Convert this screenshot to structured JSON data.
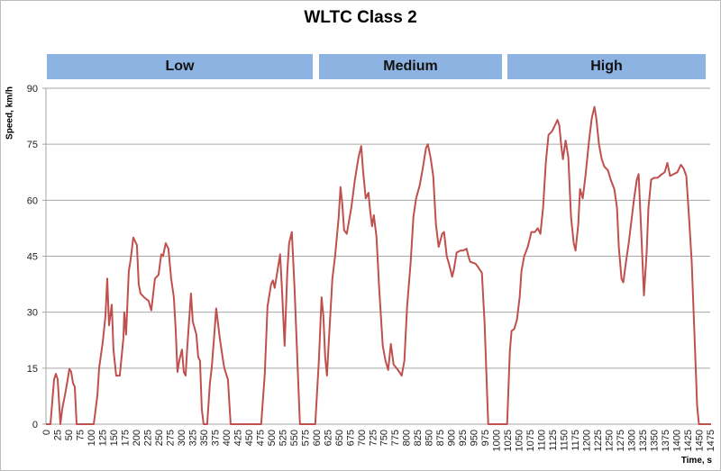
{
  "chart_data": {
    "type": "line",
    "title": "WLTC Class 2",
    "xlabel": "Time, s",
    "ylabel": "Speed, km/h",
    "xlim": [
      0,
      1475
    ],
    "ylim": [
      0,
      90
    ],
    "xticks": [
      0,
      25,
      50,
      75,
      100,
      125,
      150,
      175,
      200,
      225,
      250,
      275,
      300,
      325,
      350,
      375,
      400,
      425,
      450,
      475,
      500,
      525,
      550,
      575,
      600,
      625,
      650,
      675,
      700,
      725,
      750,
      775,
      800,
      825,
      850,
      875,
      900,
      925,
      950,
      975,
      1000,
      1025,
      1050,
      1075,
      1100,
      1125,
      1150,
      1175,
      1200,
      1225,
      1250,
      1275,
      1300,
      1325,
      1350,
      1375,
      1400,
      1425,
      1450,
      1475
    ],
    "yticks": [
      0,
      15,
      30,
      45,
      60,
      75,
      90
    ],
    "grid": "horizontal",
    "line_color": "#c0504d",
    "phase_color": "#8db3e2",
    "phases": [
      {
        "label": "Low",
        "start": 0,
        "end": 589
      },
      {
        "label": "Medium",
        "start": 589,
        "end": 1022
      },
      {
        "label": "High",
        "start": 1022,
        "end": 1477
      }
    ],
    "series": [
      {
        "x": [
          0,
          10,
          18,
          22,
          26,
          32,
          36,
          44,
          52,
          56,
          60,
          64,
          68,
          106,
          114,
          118,
          126,
          132,
          136,
          140,
          146,
          150,
          156,
          164,
          172,
          174,
          178,
          184,
          188,
          194,
          198,
          202,
          206,
          210,
          218,
          228,
          234,
          242,
          250,
          256,
          260,
          266,
          272,
          278,
          284,
          288,
          292,
          296,
          302,
          306,
          310,
          314,
          322,
          326,
          334,
          338,
          342,
          346,
          350,
          358,
          364,
          368,
          374,
          378,
          382,
          386,
          392,
          396,
          404,
          410,
          478,
          486,
          492,
          500,
          504,
          508,
          514,
          520,
          524,
          530,
          536,
          540,
          546,
          552,
          560,
          564,
          598,
          606,
          612,
          616,
          620,
          624,
          628,
          636,
          642,
          650,
          654,
          658,
          662,
          668,
          678,
          686,
          694,
          700,
          704,
          710,
          716,
          720,
          724,
          728,
          734,
          740,
          748,
          754,
          760,
          766,
          772,
          782,
          790,
          796,
          802,
          810,
          816,
          822,
          830,
          836,
          844,
          848,
          854,
          860,
          866,
          872,
          880,
          884,
          890,
          896,
          902,
          906,
          912,
          920,
          926,
          934,
          938,
          942,
          954,
          960,
          968,
          974,
          982,
          1024,
          1030,
          1034,
          1040,
          1046,
          1052,
          1056,
          1062,
          1070,
          1078,
          1086,
          1092,
          1098,
          1104,
          1110,
          1116,
          1124,
          1130,
          1136,
          1140,
          1144,
          1148,
          1154,
          1160,
          1166,
          1172,
          1176,
          1182,
          1186,
          1192,
          1198,
          1206,
          1212,
          1218,
          1222,
          1228,
          1234,
          1240,
          1248,
          1254,
          1262,
          1268,
          1272,
          1278,
          1282,
          1288,
          1294,
          1300,
          1306,
          1312,
          1316,
          1322,
          1328,
          1334,
          1338,
          1344,
          1350,
          1358,
          1368,
          1374,
          1380,
          1386,
          1394,
          1402,
          1410,
          1416,
          1422,
          1428,
          1434,
          1440,
          1446,
          1450,
          1477
        ],
        "y": [
          0,
          0,
          12,
          13.5,
          12,
          0,
          4,
          9,
          14.8,
          14,
          11,
          10,
          0,
          0,
          7.5,
          15,
          22,
          29,
          39,
          26.5,
          32,
          20,
          13,
          13,
          23,
          30,
          24,
          41,
          44,
          50,
          49,
          48,
          37.5,
          35,
          34,
          33,
          30.5,
          39,
          40,
          45.5,
          45,
          48.5,
          47,
          39,
          34,
          25.5,
          14,
          17,
          20,
          14,
          13,
          21,
          35,
          27.5,
          24,
          18,
          17,
          4,
          0,
          0,
          11,
          15,
          24.5,
          31,
          27,
          23,
          18,
          15,
          12,
          0,
          0,
          13.5,
          31.5,
          37.5,
          38.5,
          36.5,
          41,
          45.5,
          36.5,
          21,
          41,
          48.5,
          51.5,
          36.5,
          12,
          0,
          0,
          17,
          34,
          29,
          18,
          13,
          22,
          39,
          45,
          55.5,
          63.5,
          59,
          52,
          51,
          58,
          65.5,
          71.5,
          74.5,
          68,
          60.5,
          62,
          57,
          53,
          56,
          50,
          36.5,
          21,
          17,
          14.5,
          21.5,
          16,
          14.5,
          13,
          17,
          31.5,
          43.5,
          55.5,
          60.5,
          64,
          68,
          74,
          75,
          71.5,
          66.5,
          53.5,
          47.5,
          51,
          51.5,
          45,
          42.5,
          39.5,
          41.5,
          46,
          46.5,
          46.5,
          47,
          45,
          43.5,
          43,
          42,
          40.5,
          27,
          0,
          0,
          19.5,
          25,
          25.5,
          28,
          34,
          41,
          45,
          47.5,
          51.5,
          51.5,
          52.5,
          51,
          58,
          70,
          77.5,
          78.5,
          80,
          81.5,
          80,
          75,
          71,
          76,
          71.5,
          55.5,
          48.5,
          46.5,
          53.5,
          63,
          60.5,
          66.5,
          76,
          82,
          85,
          82,
          75,
          71,
          69,
          68,
          65.5,
          63,
          58,
          47.5,
          39,
          38,
          43.5,
          48.5,
          54.5,
          60.5,
          65.5,
          67,
          51,
          34.5,
          46,
          58,
          65.5,
          66,
          66,
          67,
          67.5,
          70,
          66.5,
          67,
          67.5,
          69.5,
          68.5,
          66.5,
          55.5,
          43.5,
          24.5,
          5,
          0,
          0
        ]
      }
    ]
  }
}
